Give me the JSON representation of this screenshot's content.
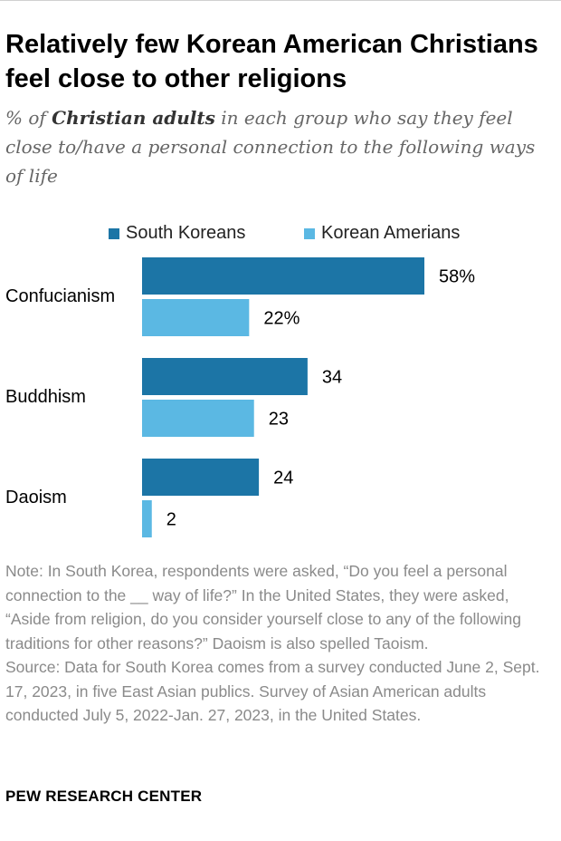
{
  "header": {
    "title": "Relatively few Korean American Christians feel close to other religions",
    "subtitle_prefix": "% of ",
    "subtitle_bold": "Christian adults",
    "subtitle_suffix": " in each group who say they feel close to/have a personal connection to the following ways of life"
  },
  "colors": {
    "south_koreans": "#1c75a6",
    "korean_americans": "#5bb8e3"
  },
  "chart_data": {
    "type": "bar",
    "orientation": "horizontal",
    "categories": [
      "Confucianism",
      "Buddhism",
      "Daoism"
    ],
    "series": [
      {
        "name": "South Koreans",
        "values": [
          58,
          34,
          24
        ],
        "labels": [
          "58%",
          "34",
          "24"
        ]
      },
      {
        "name": "Korean Amerians",
        "values": [
          22,
          23,
          2
        ],
        "labels": [
          "22%",
          "23",
          "2"
        ]
      }
    ],
    "xlim": [
      0,
      60
    ],
    "grid": false,
    "legend": "top"
  },
  "notes": {
    "note": "Note: In South Korea, respondents were asked, “Do you feel a personal connection to the __ way of life?” In the United States, they were asked, “Aside from religion, do you consider yourself close to any of the following traditions for other reasons?” Daoism is also spelled Taoism.",
    "source": "Source: Data for South Korea comes from a survey conducted June 2, Sept. 17, 2023, in five East Asian publics. Survey of Asian American adults conducted July 5, 2022-Jan. 27, 2023, in the United States."
  },
  "footer": {
    "org": "PEW RESEARCH CENTER"
  }
}
